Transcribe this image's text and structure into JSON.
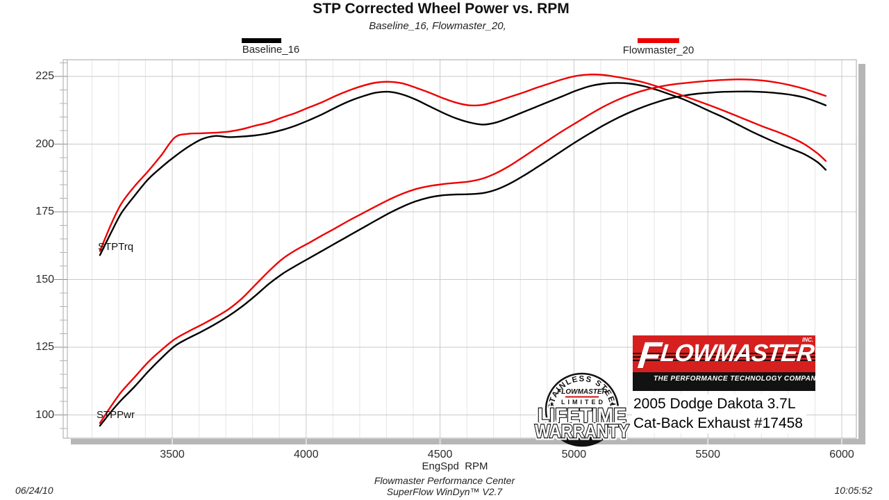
{
  "title": "STP Corrected Wheel Power vs. RPM",
  "subtitle": "Baseline_16, Flowmaster_20,",
  "legend": {
    "baseline_label": "Baseline_16",
    "flowmaster_label": "Flowmaster_20"
  },
  "colors": {
    "baseline": "#000000",
    "flowmaster": "#ee0000",
    "grid_major": "#c9c9c9",
    "grid_minor": "#e5e5e5",
    "axis_line": "#aaaaaa",
    "shadow_bar": "#b6b6b6",
    "logo_red": "#d6201f"
  },
  "curve_labels": {
    "torque": "STPTrq",
    "power": "STPPwr"
  },
  "axis": {
    "x_label": "EngSpd  RPM",
    "x_ticks": [
      3500,
      4000,
      4500,
      5000,
      5500,
      6000
    ],
    "y_ticks": [
      100,
      125,
      150,
      175,
      200,
      225
    ]
  },
  "footer": {
    "date": "06/24/10",
    "center_line1": "Flowmaster Performance Center",
    "center_line2": "SuperFlow WinDyn™ V2.7",
    "time": "10:05:52"
  },
  "logo": {
    "brand_f": "F",
    "brand_rest": "LOWMASTER",
    "inc": "INC.",
    "tagline": "THE PERFORMANCE TECHNOLOGY COMPANY"
  },
  "badge": {
    "arc_text": "STAINLESS STEEL",
    "star": "★",
    "brand": "FLOWMASTER",
    "limited": "LIMITED",
    "line1": "LIFETIME",
    "line2": "WARRANTY"
  },
  "vehicle": {
    "line1": "2005 Dodge Dakota 3.7L",
    "line2": "Cat-Back Exhaust #17458"
  },
  "chart_data": {
    "type": "line",
    "title": "STP Corrected Wheel Power vs. RPM",
    "xlabel": "EngSpd RPM",
    "ylabel": "",
    "xlim": [
      3090,
      6055
    ],
    "ylim": [
      91,
      231
    ],
    "x_ticks": [
      3500,
      4000,
      4500,
      5000,
      5500,
      6000
    ],
    "x_minor_step": 100,
    "y_ticks": [
      100,
      125,
      150,
      175,
      200,
      225
    ],
    "y_minor_step": 5,
    "grid": true,
    "legend_position": "top",
    "series": [
      {
        "name": "Baseline_16 STPTrq",
        "color": "#000000",
        "points": [
          [
            3230,
            159
          ],
          [
            3270,
            167
          ],
          [
            3310,
            174.5
          ],
          [
            3360,
            181
          ],
          [
            3410,
            187
          ],
          [
            3460,
            191.5
          ],
          [
            3510,
            195.5
          ],
          [
            3560,
            199
          ],
          [
            3610,
            201.8
          ],
          [
            3660,
            203
          ],
          [
            3710,
            202.6
          ],
          [
            3760,
            202.8
          ],
          [
            3810,
            203.2
          ],
          [
            3860,
            204
          ],
          [
            3910,
            205.2
          ],
          [
            3960,
            206.8
          ],
          [
            4010,
            208.8
          ],
          [
            4060,
            211
          ],
          [
            4110,
            213.5
          ],
          [
            4160,
            215.8
          ],
          [
            4210,
            217.6
          ],
          [
            4260,
            219
          ],
          [
            4310,
            219.3
          ],
          [
            4360,
            218.3
          ],
          [
            4410,
            216.4
          ],
          [
            4460,
            214
          ],
          [
            4510,
            211.6
          ],
          [
            4560,
            209.5
          ],
          [
            4610,
            208
          ],
          [
            4660,
            207.2
          ],
          [
            4710,
            208
          ],
          [
            4760,
            209.8
          ],
          [
            4810,
            211.8
          ],
          [
            4860,
            213.8
          ],
          [
            4910,
            215.8
          ],
          [
            4960,
            217.8
          ],
          [
            5010,
            219.8
          ],
          [
            5060,
            221.4
          ],
          [
            5110,
            222.3
          ],
          [
            5160,
            222.6
          ],
          [
            5210,
            222.3
          ],
          [
            5260,
            221.4
          ],
          [
            5310,
            220
          ],
          [
            5360,
            218.3
          ],
          [
            5410,
            216.5
          ],
          [
            5460,
            214.3
          ],
          [
            5510,
            212
          ],
          [
            5560,
            209.8
          ],
          [
            5610,
            207.3
          ],
          [
            5660,
            204.8
          ],
          [
            5710,
            202.5
          ],
          [
            5760,
            200.3
          ],
          [
            5810,
            198.3
          ],
          [
            5860,
            196.3
          ],
          [
            5910,
            193.3
          ],
          [
            5940,
            190.5
          ]
        ]
      },
      {
        "name": "Baseline_16 STPPwr",
        "color": "#000000",
        "points": [
          [
            3230,
            96
          ],
          [
            3270,
            101
          ],
          [
            3310,
            105.5
          ],
          [
            3360,
            110.5
          ],
          [
            3410,
            116
          ],
          [
            3460,
            121
          ],
          [
            3510,
            125.5
          ],
          [
            3560,
            128.3
          ],
          [
            3610,
            130.8
          ],
          [
            3660,
            133.5
          ],
          [
            3710,
            136.5
          ],
          [
            3760,
            140
          ],
          [
            3810,
            144
          ],
          [
            3860,
            148.3
          ],
          [
            3910,
            152
          ],
          [
            3960,
            155
          ],
          [
            4010,
            157.8
          ],
          [
            4060,
            160.6
          ],
          [
            4110,
            163.4
          ],
          [
            4160,
            166.2
          ],
          [
            4210,
            169
          ],
          [
            4260,
            171.8
          ],
          [
            4310,
            174.5
          ],
          [
            4360,
            176.9
          ],
          [
            4410,
            178.9
          ],
          [
            4460,
            180.3
          ],
          [
            4510,
            181.1
          ],
          [
            4560,
            181.4
          ],
          [
            4610,
            181.5
          ],
          [
            4660,
            181.9
          ],
          [
            4710,
            183.2
          ],
          [
            4760,
            185.4
          ],
          [
            4810,
            188.2
          ],
          [
            4860,
            191.3
          ],
          [
            4910,
            194.5
          ],
          [
            4960,
            197.8
          ],
          [
            5010,
            201
          ],
          [
            5060,
            204
          ],
          [
            5110,
            206.9
          ],
          [
            5160,
            209.5
          ],
          [
            5210,
            211.8
          ],
          [
            5260,
            213.8
          ],
          [
            5310,
            215.5
          ],
          [
            5360,
            216.9
          ],
          [
            5410,
            217.9
          ],
          [
            5460,
            218.6
          ],
          [
            5510,
            219
          ],
          [
            5560,
            219.3
          ],
          [
            5610,
            219.4
          ],
          [
            5660,
            219.4
          ],
          [
            5710,
            219.2
          ],
          [
            5760,
            218.8
          ],
          [
            5810,
            218.2
          ],
          [
            5860,
            217.2
          ],
          [
            5910,
            215.5
          ],
          [
            5940,
            214.3
          ]
        ]
      },
      {
        "name": "Flowmaster_20 STPTrq",
        "color": "#ee0000",
        "points": [
          [
            3230,
            160.5
          ],
          [
            3270,
            170
          ],
          [
            3310,
            178
          ],
          [
            3360,
            184.5
          ],
          [
            3410,
            190
          ],
          [
            3460,
            196
          ],
          [
            3510,
            202.5
          ],
          [
            3560,
            203.8
          ],
          [
            3610,
            204
          ],
          [
            3660,
            204.2
          ],
          [
            3710,
            204.6
          ],
          [
            3760,
            205.5
          ],
          [
            3810,
            206.8
          ],
          [
            3860,
            208
          ],
          [
            3910,
            209.8
          ],
          [
            3960,
            211.5
          ],
          [
            4010,
            213.5
          ],
          [
            4060,
            215.5
          ],
          [
            4110,
            217.8
          ],
          [
            4160,
            219.8
          ],
          [
            4210,
            221.5
          ],
          [
            4260,
            222.7
          ],
          [
            4310,
            223
          ],
          [
            4360,
            222.4
          ],
          [
            4410,
            220.8
          ],
          [
            4460,
            219
          ],
          [
            4510,
            217
          ],
          [
            4560,
            215.3
          ],
          [
            4610,
            214.3
          ],
          [
            4660,
            214.5
          ],
          [
            4710,
            215.8
          ],
          [
            4760,
            217.4
          ],
          [
            4810,
            219
          ],
          [
            4860,
            220.8
          ],
          [
            4910,
            222.4
          ],
          [
            4960,
            224
          ],
          [
            5010,
            225.2
          ],
          [
            5060,
            225.7
          ],
          [
            5110,
            225.5
          ],
          [
            5160,
            224.8
          ],
          [
            5210,
            223.9
          ],
          [
            5260,
            222.8
          ],
          [
            5310,
            221.3
          ],
          [
            5360,
            219.5
          ],
          [
            5410,
            217.8
          ],
          [
            5460,
            216
          ],
          [
            5510,
            214.2
          ],
          [
            5560,
            212.3
          ],
          [
            5610,
            210.3
          ],
          [
            5660,
            208.3
          ],
          [
            5710,
            206.3
          ],
          [
            5760,
            204.5
          ],
          [
            5810,
            202.5
          ],
          [
            5860,
            200
          ],
          [
            5910,
            196.5
          ],
          [
            5940,
            193.8
          ]
        ]
      },
      {
        "name": "Flowmaster_20 STPPwr",
        "color": "#ee0000",
        "points": [
          [
            3230,
            97
          ],
          [
            3270,
            103
          ],
          [
            3310,
            108.5
          ],
          [
            3360,
            114
          ],
          [
            3410,
            119.5
          ],
          [
            3460,
            124
          ],
          [
            3510,
            128
          ],
          [
            3560,
            130.8
          ],
          [
            3610,
            133.3
          ],
          [
            3660,
            136
          ],
          [
            3710,
            139
          ],
          [
            3760,
            143
          ],
          [
            3810,
            148
          ],
          [
            3860,
            153
          ],
          [
            3910,
            157.5
          ],
          [
            3960,
            160.8
          ],
          [
            4010,
            163.5
          ],
          [
            4060,
            166.3
          ],
          [
            4110,
            169
          ],
          [
            4160,
            171.8
          ],
          [
            4210,
            174.4
          ],
          [
            4260,
            177
          ],
          [
            4310,
            179.5
          ],
          [
            4360,
            181.7
          ],
          [
            4410,
            183.4
          ],
          [
            4460,
            184.5
          ],
          [
            4510,
            185.2
          ],
          [
            4560,
            185.7
          ],
          [
            4610,
            186.2
          ],
          [
            4660,
            187.3
          ],
          [
            4710,
            189.3
          ],
          [
            4760,
            192
          ],
          [
            4810,
            195.2
          ],
          [
            4860,
            198.5
          ],
          [
            4910,
            201.8
          ],
          [
            4960,
            205
          ],
          [
            5010,
            208
          ],
          [
            5060,
            211
          ],
          [
            5110,
            213.8
          ],
          [
            5160,
            216.2
          ],
          [
            5210,
            218.2
          ],
          [
            5260,
            219.8
          ],
          [
            5310,
            221
          ],
          [
            5360,
            221.9
          ],
          [
            5410,
            222.5
          ],
          [
            5460,
            223
          ],
          [
            5510,
            223.4
          ],
          [
            5560,
            223.7
          ],
          [
            5610,
            223.9
          ],
          [
            5660,
            223.8
          ],
          [
            5710,
            223.4
          ],
          [
            5760,
            222.7
          ],
          [
            5810,
            221.7
          ],
          [
            5860,
            220.4
          ],
          [
            5910,
            218.8
          ],
          [
            5940,
            217.8
          ]
        ]
      }
    ]
  }
}
